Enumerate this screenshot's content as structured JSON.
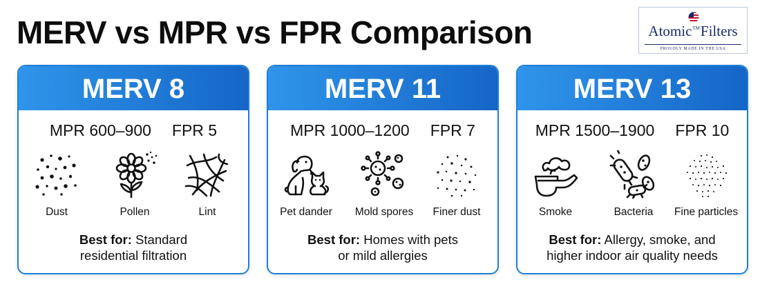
{
  "page": {
    "title": "MERV vs MPR vs FPR Comparison"
  },
  "logo": {
    "brand_left": "Atomic",
    "brand_tm": "TM",
    "brand_right": "Filters",
    "tagline": "PROUDLY MADE IN THE USA",
    "color": "#1a2a6c"
  },
  "colors": {
    "header_start": "#2f95ea",
    "header_end": "#1566c7",
    "card_border": "#1e7fd8"
  },
  "cards": [
    {
      "header": "MERV 8",
      "mpr": "MPR 600–900",
      "fpr": "FPR 5",
      "items": [
        {
          "icon": "dust-icon",
          "label": "Dust"
        },
        {
          "icon": "pollen-icon",
          "label": "Pollen"
        },
        {
          "icon": "lint-icon",
          "label": "Lint"
        }
      ],
      "best_lead": "Best for:",
      "best_line1": "Standard",
      "best_line2": "residential filtration"
    },
    {
      "header": "MERV 11",
      "mpr": "MPR 1000–1200",
      "fpr": "FPR 7",
      "items": [
        {
          "icon": "pet-dander-icon",
          "label": "Pet dander"
        },
        {
          "icon": "mold-spores-icon",
          "label": "Mold spores"
        },
        {
          "icon": "finer-dust-icon",
          "label": "Finer dust"
        }
      ],
      "best_lead": "Best for:",
      "best_line1": "Homes with pets",
      "best_line2": "or mild allergies"
    },
    {
      "header": "MERV 13",
      "mpr": "MPR 1500–1900",
      "fpr": "FPR 10",
      "items": [
        {
          "icon": "smoke-icon",
          "label": "Smoke"
        },
        {
          "icon": "bacteria-icon",
          "label": "Bacteria"
        },
        {
          "icon": "fine-particles-icon",
          "label": "Fine particles"
        }
      ],
      "best_lead": "Best for:",
      "best_line1": "Allergy, smoke, and",
      "best_line2": "higher indoor air quality needs"
    }
  ]
}
